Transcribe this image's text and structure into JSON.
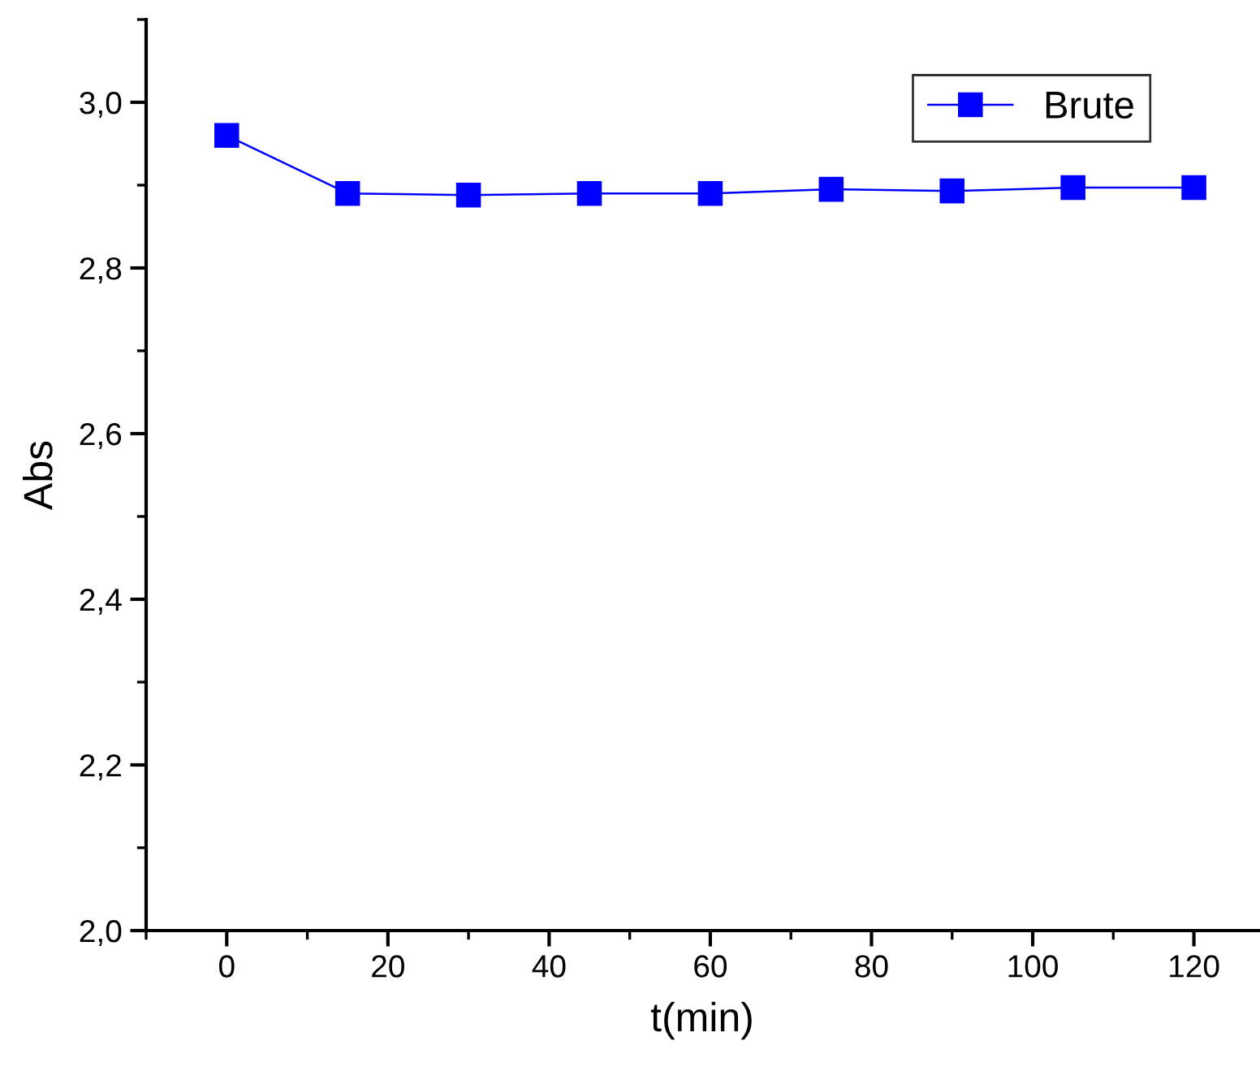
{
  "chart_data": {
    "type": "line",
    "xlabel": "t(min)",
    "ylabel": "Abs",
    "x": [
      0,
      15,
      30,
      45,
      60,
      75,
      90,
      105,
      120
    ],
    "series": [
      {
        "name": "Brute",
        "color": "#0000ff",
        "values": [
          2.96,
          2.89,
          2.888,
          2.89,
          2.89,
          2.895,
          2.893,
          2.897,
          2.897
        ]
      }
    ],
    "xlim": [
      -10,
      128
    ],
    "ylim": [
      2.0,
      3.1
    ],
    "xticks": [
      0,
      20,
      40,
      60,
      80,
      100,
      120
    ],
    "yticks": [
      {
        "value": 2.0,
        "label": "2,0"
      },
      {
        "value": 2.2,
        "label": "2,2"
      },
      {
        "value": 2.4,
        "label": "2,4"
      },
      {
        "value": 2.6,
        "label": "2,6"
      },
      {
        "value": 2.8,
        "label": "2,8"
      },
      {
        "value": 3.0,
        "label": "3,0"
      }
    ],
    "grid": false,
    "legend": "top right",
    "marker": "square",
    "line_style": "solid"
  }
}
